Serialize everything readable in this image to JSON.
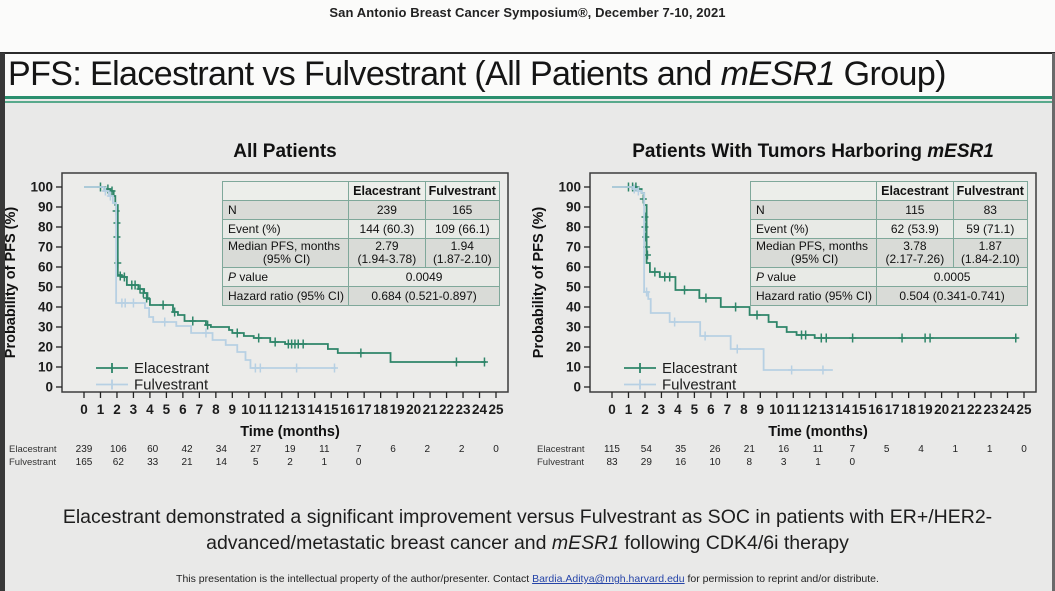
{
  "page": {
    "symposium_header": "San Antonio Breast Cancer Symposium®, December 7-10, 2021",
    "title_pre": "PFS: Elacestrant vs Fulvestrant (All Patients and ",
    "title_italic": "mESR1",
    "title_post": " Group)",
    "conclusion_line1": "Elacestrant demonstrated a significant improvement versus Fulvestrant as SOC in patients with ER+/HER2-",
    "conclusion_line2_pre": "advanced/metastatic breast cancer and ",
    "conclusion_line2_italic": "mESR1",
    "conclusion_line2_post": " following CDK4/6i therapy",
    "footer_pre": "This presentation is the intellectual property of the author/presenter. Contact ",
    "footer_link": "Bardia.Aditya@mgh.harvard.edu",
    "footer_post": " for permission to reprint and/or distribute."
  },
  "colors": {
    "elacestrant": "#2e8569",
    "fulvestrant": "#b7d0e3",
    "teal_rule": "#2a8f6e",
    "table_border": "#7fa89a"
  },
  "stats_tables": [
    {
      "col_headers": [
        "Elacestrant",
        "Fulvestrant"
      ],
      "rows": [
        {
          "label": "N",
          "ela": "239",
          "ful": "165"
        },
        {
          "label": "Event (%)",
          "ela": "144 (60.3)",
          "ful": "109 (66.1)"
        },
        {
          "label": "Median PFS, months",
          "label2": "(95% CI)",
          "ela": "2.79",
          "ela2": "(1.94-3.78)",
          "ful": "1.94",
          "ful2": "(1.87-2.10)"
        },
        {
          "label_italic": "P",
          "label_rest": " value",
          "value": "0.0049"
        },
        {
          "label": "Hazard ratio (95% CI)",
          "value": "0.684 (0.521-0.897)"
        }
      ]
    },
    {
      "col_headers": [
        "Elacestrant",
        "Fulvestrant"
      ],
      "rows": [
        {
          "label": "N",
          "ela": "115",
          "ful": "83"
        },
        {
          "label": "Event (%)",
          "ela": "62 (53.9)",
          "ful": "59 (71.1)"
        },
        {
          "label": "Median PFS, months",
          "label2": "(95% CI)",
          "ela": "3.78",
          "ela2": "(2.17-7.26)",
          "ful": "1.87",
          "ful2": "(1.84-2.10)"
        },
        {
          "label_italic": "P",
          "label_rest": " value",
          "value": "0.0005"
        },
        {
          "label": "Hazard ratio (95% CI)",
          "value": "0.504 (0.341-0.741)"
        }
      ]
    }
  ],
  "chart_data": [
    {
      "type": "line",
      "subtype": "kaplan-meier-step",
      "title_pre": "All Patients",
      "title_italic": "",
      "xlabel": "Time (months)",
      "ylabel": "Probability of PFS (%)",
      "xlim": [
        0,
        25
      ],
      "ylim": [
        0,
        100
      ],
      "xticks": [
        0,
        1,
        2,
        3,
        4,
        5,
        6,
        7,
        8,
        9,
        10,
        11,
        12,
        13,
        14,
        15,
        16,
        17,
        18,
        19,
        20,
        21,
        22,
        23,
        24,
        25
      ],
      "yticks": [
        0,
        10,
        20,
        30,
        40,
        50,
        60,
        70,
        80,
        90,
        100
      ],
      "grid": false,
      "legend_position": "lower-left",
      "series": [
        {
          "name": "Elacestrant",
          "color": "#2e8569",
          "steps": [
            [
              0,
              100
            ],
            [
              1.3,
              99
            ],
            [
              1.6,
              98
            ],
            [
              1.8,
              95.5
            ],
            [
              1.9,
              91
            ],
            [
              2.05,
              56
            ],
            [
              2.3,
              55
            ],
            [
              2.6,
              51
            ],
            [
              3.3,
              49
            ],
            [
              3.65,
              47
            ],
            [
              3.85,
              44
            ],
            [
              4.0,
              41
            ],
            [
              5.4,
              37.5
            ],
            [
              5.7,
              36
            ],
            [
              6.1,
              33
            ],
            [
              7.4,
              31
            ],
            [
              7.7,
              30
            ],
            [
              8.8,
              28.5
            ],
            [
              9.0,
              27
            ],
            [
              9.7,
              25.5
            ],
            [
              10.3,
              24.5
            ],
            [
              11.3,
              22.5
            ],
            [
              12.2,
              21.5
            ],
            [
              14.8,
              19
            ],
            [
              15.4,
              17
            ],
            [
              18.6,
              12.5
            ]
          ],
          "end_x": 24.4,
          "censors": [
            [
              1.0,
              100
            ],
            [
              1.45,
              99
            ],
            [
              1.7,
              98
            ],
            [
              1.95,
              88
            ],
            [
              2.0,
              82
            ],
            [
              2.0,
              75
            ],
            [
              2.05,
              62
            ],
            [
              2.2,
              55.5
            ],
            [
              2.45,
              55
            ],
            [
              2.9,
              51
            ],
            [
              3.1,
              51
            ],
            [
              3.4,
              49
            ],
            [
              3.6,
              47
            ],
            [
              3.8,
              44.5
            ],
            [
              4.8,
              41
            ],
            [
              5.5,
              37.5
            ],
            [
              6.6,
              33
            ],
            [
              7.5,
              31
            ],
            [
              9.3,
              27
            ],
            [
              10.6,
              24.5
            ],
            [
              11.6,
              22.5
            ],
            [
              12.4,
              21.5
            ],
            [
              12.6,
              21.5
            ],
            [
              12.8,
              21.5
            ],
            [
              13.0,
              21.5
            ],
            [
              13.3,
              21.5
            ],
            [
              16.8,
              17
            ],
            [
              22.6,
              12.5
            ],
            [
              24.3,
              12.5
            ]
          ]
        },
        {
          "name": "Fulvestrant",
          "color": "#b7d0e3",
          "steps": [
            [
              0,
              100
            ],
            [
              1.2,
              98
            ],
            [
              1.5,
              95.5
            ],
            [
              1.75,
              92
            ],
            [
              1.95,
              42
            ],
            [
              3.7,
              39.5
            ],
            [
              3.95,
              35
            ],
            [
              4.2,
              32.5
            ],
            [
              5.6,
              30.5
            ],
            [
              6.5,
              27
            ],
            [
              7.8,
              23.5
            ],
            [
              8.6,
              21
            ],
            [
              9.3,
              17.5
            ],
            [
              9.8,
              13.5
            ],
            [
              10.1,
              9.5
            ]
          ],
          "end_x": 15.3,
          "censors": [
            [
              1.3,
              98
            ],
            [
              1.6,
              95.5
            ],
            [
              2.3,
              42
            ],
            [
              2.5,
              42
            ],
            [
              3.0,
              42
            ],
            [
              4.9,
              32.5
            ],
            [
              7.4,
              27
            ],
            [
              10.4,
              9.5
            ],
            [
              10.7,
              9.5
            ],
            [
              12.9,
              9.5
            ],
            [
              15.2,
              9.5
            ]
          ]
        }
      ],
      "at_risk": {
        "rows": [
          {
            "label": "Elacestrant",
            "values": [
              239,
              106,
              60,
              42,
              34,
              27,
              19,
              11,
              7,
              6,
              2,
              2,
              0
            ]
          },
          {
            "label": "Fulvestrant",
            "values": [
              165,
              62,
              33,
              21,
              14,
              5,
              2,
              1,
              0
            ]
          }
        ]
      }
    },
    {
      "type": "line",
      "subtype": "kaplan-meier-step",
      "title_pre": "Patients With Tumors Harboring ",
      "title_italic": "mESR1",
      "xlabel": "Time (months)",
      "ylabel": "Probability of PFS (%)",
      "xlim": [
        0,
        25
      ],
      "ylim": [
        0,
        100
      ],
      "xticks": [
        0,
        1,
        2,
        3,
        4,
        5,
        6,
        7,
        8,
        9,
        10,
        11,
        12,
        13,
        14,
        15,
        16,
        17,
        18,
        19,
        20,
        21,
        22,
        23,
        24,
        25
      ],
      "yticks": [
        0,
        10,
        20,
        30,
        40,
        50,
        60,
        70,
        80,
        90,
        100
      ],
      "grid": false,
      "legend_position": "lower-left",
      "series": [
        {
          "name": "Elacestrant",
          "color": "#2e8569",
          "steps": [
            [
              0,
              100
            ],
            [
              1.6,
              99
            ],
            [
              1.8,
              97
            ],
            [
              1.95,
              91
            ],
            [
              2.1,
              62
            ],
            [
              2.3,
              57.5
            ],
            [
              2.9,
              55
            ],
            [
              3.85,
              48.5
            ],
            [
              5.3,
              44.5
            ],
            [
              6.6,
              40
            ],
            [
              8.35,
              36
            ],
            [
              9.5,
              32.5
            ],
            [
              10.0,
              30
            ],
            [
              10.6,
              27.5
            ],
            [
              11.2,
              26
            ],
            [
              12.3,
              24.5
            ]
          ],
          "end_x": 24.6,
          "censors": [
            [
              1.0,
              100
            ],
            [
              1.25,
              100
            ],
            [
              1.45,
              100
            ],
            [
              1.9,
              94
            ],
            [
              2.0,
              85
            ],
            [
              2.0,
              80
            ],
            [
              2.05,
              75
            ],
            [
              2.1,
              70
            ],
            [
              2.15,
              66
            ],
            [
              2.6,
              57.5
            ],
            [
              3.2,
              55
            ],
            [
              3.5,
              55
            ],
            [
              4.4,
              48.5
            ],
            [
              5.7,
              44.5
            ],
            [
              7.5,
              40
            ],
            [
              8.8,
              36
            ],
            [
              11.5,
              26
            ],
            [
              11.75,
              26
            ],
            [
              12.7,
              24.5
            ],
            [
              13.0,
              24.5
            ],
            [
              14.6,
              24.5
            ],
            [
              17.6,
              24.5
            ],
            [
              19.0,
              24.5
            ],
            [
              19.3,
              24.5
            ],
            [
              24.5,
              24.5
            ]
          ]
        },
        {
          "name": "Fulvestrant",
          "color": "#b7d0e3",
          "steps": [
            [
              0,
              100
            ],
            [
              1.3,
              99
            ],
            [
              1.55,
              98
            ],
            [
              1.8,
              97
            ],
            [
              1.95,
              47.5
            ],
            [
              2.2,
              44
            ],
            [
              2.35,
              37
            ],
            [
              3.5,
              32.5
            ],
            [
              5.35,
              25.5
            ],
            [
              7.2,
              19
            ],
            [
              9.2,
              8.5
            ]
          ],
          "end_x": 13.4,
          "censors": [
            [
              1.35,
              99
            ],
            [
              1.6,
              98
            ],
            [
              2.1,
              47.5
            ],
            [
              3.8,
              32.5
            ],
            [
              5.65,
              25.5
            ],
            [
              7.6,
              19
            ],
            [
              10.9,
              8.5
            ],
            [
              12.8,
              8.5
            ]
          ]
        }
      ],
      "at_risk": {
        "rows": [
          {
            "label": "Elacestrant",
            "values": [
              115,
              54,
              35,
              26,
              21,
              16,
              11,
              7,
              5,
              4,
              1,
              1,
              0
            ]
          },
          {
            "label": "Fulvestrant",
            "values": [
              83,
              29,
              16,
              10,
              8,
              3,
              1,
              0
            ]
          }
        ]
      }
    }
  ]
}
